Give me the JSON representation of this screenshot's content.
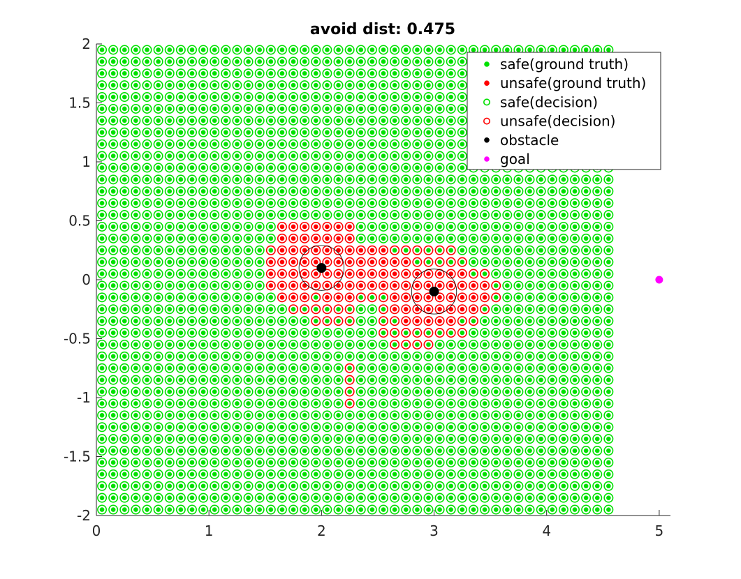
{
  "chart_data": {
    "type": "scatter",
    "title": "avoid dist: 0.475",
    "xlabel": "",
    "ylabel": "",
    "xlim": [
      0,
      5.1
    ],
    "ylim": [
      -2,
      2
    ],
    "x_ticks": [
      "0",
      "1",
      "2",
      "3",
      "4",
      "5"
    ],
    "y_ticks": [
      "2",
      "1.5",
      "1",
      "0.5",
      "0",
      "-0.5",
      "-1",
      "-1.5",
      "-2"
    ],
    "grid": false,
    "legend_position": "top-right",
    "grid_points": {
      "x_start": 0.05,
      "x_step": 0.1,
      "x_count": 46,
      "y_start": -1.95,
      "y_step": 0.1,
      "y_count": 40
    },
    "unsafe_decision_points": [
      [
        1.65,
        0.45
      ],
      [
        1.75,
        0.45
      ],
      [
        1.85,
        0.45
      ],
      [
        1.95,
        0.45
      ],
      [
        2.05,
        0.45
      ],
      [
        2.15,
        0.45
      ],
      [
        2.25,
        0.45
      ],
      [
        1.65,
        0.35
      ],
      [
        1.75,
        0.35
      ],
      [
        1.85,
        0.35
      ],
      [
        1.95,
        0.35
      ],
      [
        2.05,
        0.35
      ],
      [
        2.15,
        0.35
      ],
      [
        2.25,
        0.35
      ],
      [
        1.55,
        0.25
      ],
      [
        1.65,
        0.25
      ],
      [
        1.75,
        0.25
      ],
      [
        1.85,
        0.25
      ],
      [
        1.95,
        0.25
      ],
      [
        2.05,
        0.25
      ],
      [
        2.15,
        0.25
      ],
      [
        2.25,
        0.25
      ],
      [
        2.35,
        0.25
      ],
      [
        2.45,
        0.25
      ],
      [
        2.55,
        0.25
      ],
      [
        2.65,
        0.25
      ],
      [
        2.75,
        0.25
      ],
      [
        2.85,
        0.25
      ],
      [
        2.95,
        0.25
      ],
      [
        3.05,
        0.25
      ],
      [
        3.15,
        0.25
      ],
      [
        1.55,
        0.15
      ],
      [
        1.65,
        0.15
      ],
      [
        1.75,
        0.15
      ],
      [
        1.85,
        0.15
      ],
      [
        1.95,
        0.15
      ],
      [
        2.05,
        0.15
      ],
      [
        2.15,
        0.15
      ],
      [
        2.25,
        0.15
      ],
      [
        2.35,
        0.15
      ],
      [
        2.45,
        0.15
      ],
      [
        2.55,
        0.15
      ],
      [
        2.65,
        0.15
      ],
      [
        2.75,
        0.15
      ],
      [
        2.85,
        0.15
      ],
      [
        2.95,
        0.15
      ],
      [
        3.05,
        0.15
      ],
      [
        3.15,
        0.15
      ],
      [
        3.25,
        0.15
      ],
      [
        1.55,
        0.05
      ],
      [
        1.65,
        0.05
      ],
      [
        1.75,
        0.05
      ],
      [
        1.85,
        0.05
      ],
      [
        1.95,
        0.05
      ],
      [
        2.05,
        0.05
      ],
      [
        2.15,
        0.05
      ],
      [
        2.25,
        0.05
      ],
      [
        2.35,
        0.05
      ],
      [
        2.45,
        0.05
      ],
      [
        2.55,
        0.05
      ],
      [
        2.65,
        0.05
      ],
      [
        2.75,
        0.05
      ],
      [
        2.85,
        0.05
      ],
      [
        2.95,
        0.05
      ],
      [
        3.05,
        0.05
      ],
      [
        3.15,
        0.05
      ],
      [
        3.25,
        0.05
      ],
      [
        3.35,
        0.05
      ],
      [
        3.45,
        0.05
      ],
      [
        1.55,
        -0.05
      ],
      [
        1.65,
        -0.05
      ],
      [
        1.75,
        -0.05
      ],
      [
        1.85,
        -0.05
      ],
      [
        1.95,
        -0.05
      ],
      [
        2.05,
        -0.05
      ],
      [
        2.15,
        -0.05
      ],
      [
        2.25,
        -0.05
      ],
      [
        2.35,
        -0.05
      ],
      [
        2.45,
        -0.05
      ],
      [
        2.55,
        -0.05
      ],
      [
        2.65,
        -0.05
      ],
      [
        2.75,
        -0.05
      ],
      [
        2.85,
        -0.05
      ],
      [
        2.95,
        -0.05
      ],
      [
        3.05,
        -0.05
      ],
      [
        3.15,
        -0.05
      ],
      [
        3.25,
        -0.05
      ],
      [
        3.35,
        -0.05
      ],
      [
        3.45,
        -0.05
      ],
      [
        3.55,
        -0.05
      ],
      [
        1.65,
        -0.15
      ],
      [
        1.75,
        -0.15
      ],
      [
        1.85,
        -0.15
      ],
      [
        1.95,
        -0.15
      ],
      [
        2.05,
        -0.15
      ],
      [
        2.15,
        -0.15
      ],
      [
        2.25,
        -0.15
      ],
      [
        2.35,
        -0.15
      ],
      [
        2.45,
        -0.15
      ],
      [
        2.55,
        -0.15
      ],
      [
        2.65,
        -0.15
      ],
      [
        2.75,
        -0.15
      ],
      [
        2.85,
        -0.15
      ],
      [
        2.95,
        -0.15
      ],
      [
        3.05,
        -0.15
      ],
      [
        3.15,
        -0.15
      ],
      [
        3.25,
        -0.15
      ],
      [
        3.35,
        -0.15
      ],
      [
        3.45,
        -0.15
      ],
      [
        3.55,
        -0.15
      ],
      [
        1.75,
        -0.25
      ],
      [
        1.85,
        -0.25
      ],
      [
        1.95,
        -0.25
      ],
      [
        2.05,
        -0.25
      ],
      [
        2.15,
        -0.25
      ],
      [
        2.25,
        -0.25
      ],
      [
        2.55,
        -0.25
      ],
      [
        2.65,
        -0.25
      ],
      [
        2.75,
        -0.25
      ],
      [
        2.85,
        -0.25
      ],
      [
        2.95,
        -0.25
      ],
      [
        3.05,
        -0.25
      ],
      [
        3.15,
        -0.25
      ],
      [
        3.25,
        -0.25
      ],
      [
        3.35,
        -0.25
      ],
      [
        3.45,
        -0.25
      ],
      [
        1.95,
        -0.35
      ],
      [
        2.05,
        -0.35
      ],
      [
        2.15,
        -0.35
      ],
      [
        2.25,
        -0.35
      ],
      [
        2.55,
        -0.35
      ],
      [
        2.65,
        -0.35
      ],
      [
        2.75,
        -0.35
      ],
      [
        2.85,
        -0.35
      ],
      [
        2.95,
        -0.35
      ],
      [
        3.05,
        -0.35
      ],
      [
        3.15,
        -0.35
      ],
      [
        3.25,
        -0.35
      ],
      [
        3.35,
        -0.35
      ],
      [
        2.55,
        -0.45
      ],
      [
        2.65,
        -0.45
      ],
      [
        2.75,
        -0.45
      ],
      [
        2.85,
        -0.45
      ],
      [
        2.95,
        -0.45
      ],
      [
        3.05,
        -0.45
      ],
      [
        3.15,
        -0.45
      ],
      [
        3.25,
        -0.45
      ],
      [
        2.65,
        -0.55
      ],
      [
        2.75,
        -0.55
      ],
      [
        2.85,
        -0.55
      ],
      [
        2.95,
        -0.55
      ],
      [
        2.25,
        -0.75
      ],
      [
        2.25,
        -0.85
      ],
      [
        2.25,
        -0.95
      ],
      [
        2.25,
        -1.05
      ]
    ],
    "unsafe_ground_truth_points": [
      [
        1.65,
        0.45
      ],
      [
        1.75,
        0.45
      ],
      [
        1.85,
        0.45
      ],
      [
        1.95,
        0.45
      ],
      [
        2.05,
        0.45
      ],
      [
        2.15,
        0.45
      ],
      [
        2.25,
        0.45
      ],
      [
        1.65,
        0.35
      ],
      [
        1.75,
        0.35
      ],
      [
        1.85,
        0.35
      ],
      [
        1.95,
        0.35
      ],
      [
        2.05,
        0.35
      ],
      [
        2.15,
        0.35
      ],
      [
        2.25,
        0.35
      ],
      [
        1.65,
        0.25
      ],
      [
        1.75,
        0.25
      ],
      [
        1.85,
        0.25
      ],
      [
        1.95,
        0.25
      ],
      [
        2.05,
        0.25
      ],
      [
        2.15,
        0.25
      ],
      [
        2.25,
        0.25
      ],
      [
        2.35,
        0.25
      ],
      [
        2.45,
        0.25
      ],
      [
        2.55,
        0.25
      ],
      [
        1.55,
        0.15
      ],
      [
        1.65,
        0.15
      ],
      [
        1.75,
        0.15
      ],
      [
        1.85,
        0.15
      ],
      [
        1.95,
        0.15
      ],
      [
        2.05,
        0.15
      ],
      [
        2.15,
        0.15
      ],
      [
        2.25,
        0.15
      ],
      [
        2.35,
        0.15
      ],
      [
        2.45,
        0.15
      ],
      [
        2.55,
        0.15
      ],
      [
        2.65,
        0.15
      ],
      [
        2.75,
        0.15
      ],
      [
        1.55,
        0.05
      ],
      [
        1.65,
        0.05
      ],
      [
        1.75,
        0.05
      ],
      [
        1.85,
        0.05
      ],
      [
        1.95,
        0.05
      ],
      [
        2.05,
        0.05
      ],
      [
        2.15,
        0.05
      ],
      [
        2.25,
        0.05
      ],
      [
        2.35,
        0.05
      ],
      [
        2.45,
        0.05
      ],
      [
        2.55,
        0.05
      ],
      [
        2.65,
        0.05
      ],
      [
        2.75,
        0.05
      ],
      [
        2.85,
        0.05
      ],
      [
        2.95,
        0.05
      ],
      [
        3.05,
        0.05
      ],
      [
        3.15,
        0.05
      ],
      [
        3.25,
        0.05
      ],
      [
        1.55,
        -0.05
      ],
      [
        1.65,
        -0.05
      ],
      [
        1.75,
        -0.05
      ],
      [
        1.85,
        -0.05
      ],
      [
        1.95,
        -0.05
      ],
      [
        2.05,
        -0.05
      ],
      [
        2.15,
        -0.05
      ],
      [
        2.25,
        -0.05
      ],
      [
        2.35,
        -0.05
      ],
      [
        2.45,
        -0.05
      ],
      [
        2.55,
        -0.05
      ],
      [
        2.65,
        -0.05
      ],
      [
        2.75,
        -0.05
      ],
      [
        2.85,
        -0.05
      ],
      [
        2.95,
        -0.05
      ],
      [
        3.05,
        -0.05
      ],
      [
        3.15,
        -0.05
      ],
      [
        3.25,
        -0.05
      ],
      [
        3.35,
        -0.05
      ],
      [
        3.45,
        -0.05
      ],
      [
        1.65,
        -0.15
      ],
      [
        1.75,
        -0.15
      ],
      [
        1.85,
        -0.15
      ],
      [
        2.05,
        -0.15
      ],
      [
        2.15,
        -0.15
      ],
      [
        2.25,
        -0.15
      ],
      [
        2.65,
        -0.15
      ],
      [
        2.75,
        -0.15
      ],
      [
        2.85,
        -0.15
      ],
      [
        2.95,
        -0.15
      ],
      [
        3.05,
        -0.15
      ],
      [
        3.15,
        -0.15
      ],
      [
        3.25,
        -0.15
      ],
      [
        3.35,
        -0.15
      ],
      [
        3.45,
        -0.15
      ],
      [
        2.65,
        -0.25
      ],
      [
        2.75,
        -0.25
      ],
      [
        2.85,
        -0.25
      ],
      [
        2.95,
        -0.25
      ],
      [
        3.05,
        -0.25
      ],
      [
        3.15,
        -0.25
      ],
      [
        3.25,
        -0.25
      ],
      [
        3.35,
        -0.25
      ],
      [
        2.75,
        -0.35
      ],
      [
        2.85,
        -0.35
      ],
      [
        2.95,
        -0.35
      ],
      [
        3.05,
        -0.35
      ],
      [
        3.15,
        -0.35
      ]
    ],
    "obstacles": [
      [
        2.0,
        0.1
      ],
      [
        3.0,
        -0.1
      ]
    ],
    "obstacle_avoid_radius": 0.2,
    "goal": [
      5.0,
      0.0
    ],
    "legend": [
      {
        "label": "safe(ground truth)",
        "marker": "dot",
        "color": "#00e000"
      },
      {
        "label": "unsafe(ground truth)",
        "marker": "dot",
        "color": "#ff0000"
      },
      {
        "label": "safe(decision)",
        "marker": "ring",
        "color": "#00e000"
      },
      {
        "label": "unsafe(decision)",
        "marker": "ring",
        "color": "#ff0000"
      },
      {
        "label": "obstacle",
        "marker": "dot",
        "color": "#000000"
      },
      {
        "label": "goal",
        "marker": "dot",
        "color": "#ff00ff"
      }
    ],
    "colors": {
      "safe": "#00e000",
      "unsafe": "#ff0000",
      "obstacle": "#000000",
      "goal": "#ff00ff"
    }
  }
}
